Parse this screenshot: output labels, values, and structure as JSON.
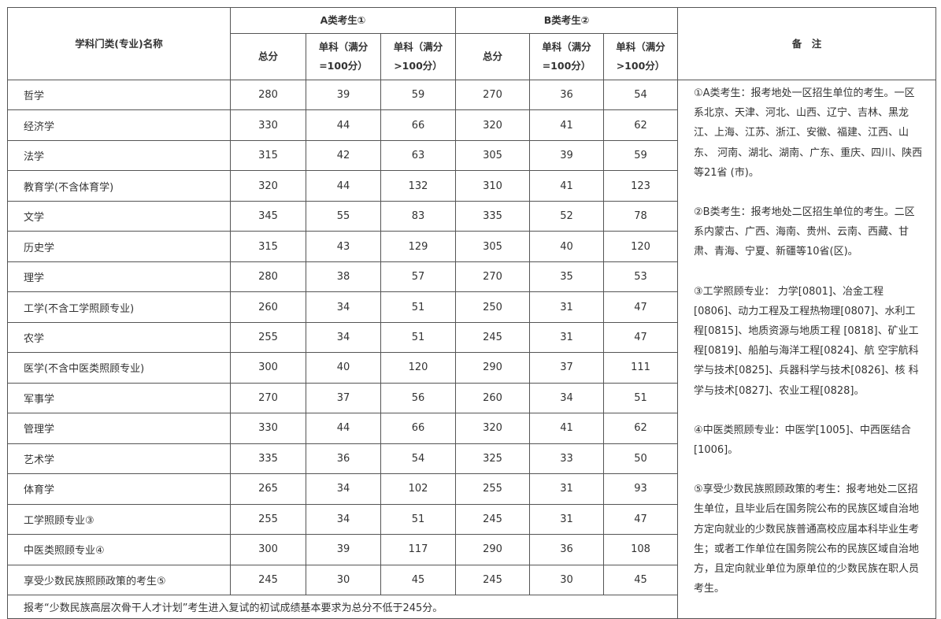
{
  "header": {
    "subject": "学科门类(专业)名称",
    "groupA": "A类考生①",
    "groupB": "B类考生②",
    "notes": "备　注",
    "total": "总分",
    "single100": "单科（满分=100分）",
    "singleOver100": "单科（满分>100分）"
  },
  "rows": [
    {
      "name": "哲学",
      "a": [
        "280",
        "39",
        "59"
      ],
      "b": [
        "270",
        "36",
        "54"
      ]
    },
    {
      "name": "经济学",
      "a": [
        "330",
        "44",
        "66"
      ],
      "b": [
        "320",
        "41",
        "62"
      ]
    },
    {
      "name": "法学",
      "a": [
        "315",
        "42",
        "63"
      ],
      "b": [
        "305",
        "39",
        "59"
      ]
    },
    {
      "name": "教育学(不含体育学)",
      "a": [
        "320",
        "44",
        "132"
      ],
      "b": [
        "310",
        "41",
        "123"
      ]
    },
    {
      "name": "文学",
      "a": [
        "345",
        "55",
        "83"
      ],
      "b": [
        "335",
        "52",
        "78"
      ]
    },
    {
      "name": "历史学",
      "a": [
        "315",
        "43",
        "129"
      ],
      "b": [
        "305",
        "40",
        "120"
      ]
    },
    {
      "name": "理学",
      "a": [
        "280",
        "38",
        "57"
      ],
      "b": [
        "270",
        "35",
        "53"
      ]
    },
    {
      "name": "工学(不含工学照顾专业)",
      "a": [
        "260",
        "34",
        "51"
      ],
      "b": [
        "250",
        "31",
        "47"
      ]
    },
    {
      "name": "农学",
      "a": [
        "255",
        "34",
        "51"
      ],
      "b": [
        "245",
        "31",
        "47"
      ]
    },
    {
      "name": "医学(不含中医类照顾专业)",
      "a": [
        "300",
        "40",
        "120"
      ],
      "b": [
        "290",
        "37",
        "111"
      ]
    },
    {
      "name": "军事学",
      "a": [
        "270",
        "37",
        "56"
      ],
      "b": [
        "260",
        "34",
        "51"
      ]
    },
    {
      "name": "管理学",
      "a": [
        "330",
        "44",
        "66"
      ],
      "b": [
        "320",
        "41",
        "62"
      ]
    },
    {
      "name": "艺术学",
      "a": [
        "335",
        "36",
        "54"
      ],
      "b": [
        "325",
        "33",
        "50"
      ]
    },
    {
      "name": "体育学",
      "a": [
        "265",
        "34",
        "102"
      ],
      "b": [
        "255",
        "31",
        "93"
      ]
    },
    {
      "name": "工学照顾专业③",
      "a": [
        "255",
        "34",
        "51"
      ],
      "b": [
        "245",
        "31",
        "47"
      ]
    },
    {
      "name": "中医类照顾专业④",
      "a": [
        "300",
        "39",
        "117"
      ],
      "b": [
        "290",
        "36",
        "108"
      ]
    },
    {
      "name": "享受少数民族照顾政策的考生⑤",
      "a": [
        "245",
        "30",
        "45"
      ],
      "b": [
        "245",
        "30",
        "45"
      ]
    }
  ],
  "footer": "报考“少数民族高层次骨干人才计划”考生进入复试的初试成绩基本要求为总分不低于245分。",
  "notes": [
    "①A类考生：报考地处一区招生单位的考生。一区系北京、天津、河北、山西、辽宁、吉林、黑龙江、上海、江苏、浙江、安徽、福建、江西、山东、 河南、湖北、湖南、广东、重庆、四川、陕西等21省 (市)。",
    "②B类考生：报考地处二区招生单位的考生。二区系内蒙古、广西、海南、贵州、云南、西藏、甘肃、青海、宁夏、新疆等10省(区)。",
    "③工学照顾专业： 力学[0801]、冶金工程[0806]、动力工程及工程热物理[0807]、水利工程[0815]、地质资源与地质工程 [0818]、矿业工程[0819]、船舶与海洋工程[0824]、航 空宇航科学与技术[0825]、兵器科学与技术[0826]、核 科学与技术[0827]、农业工程[0828]。",
    "④中医类照顾专业：中医学[1005]、中西医结合[1006]。",
    "⑤享受少数民族照顾政策的考生：报考地处二区招生单位，且毕业后在国务院公布的民族区域自治地方定向就业的少数民族普通高校应届本科毕业生考生；或者工作单位在国务院公布的民族区域自治地方，且定向就业单位为原单位的少数民族在职人员考生。"
  ]
}
